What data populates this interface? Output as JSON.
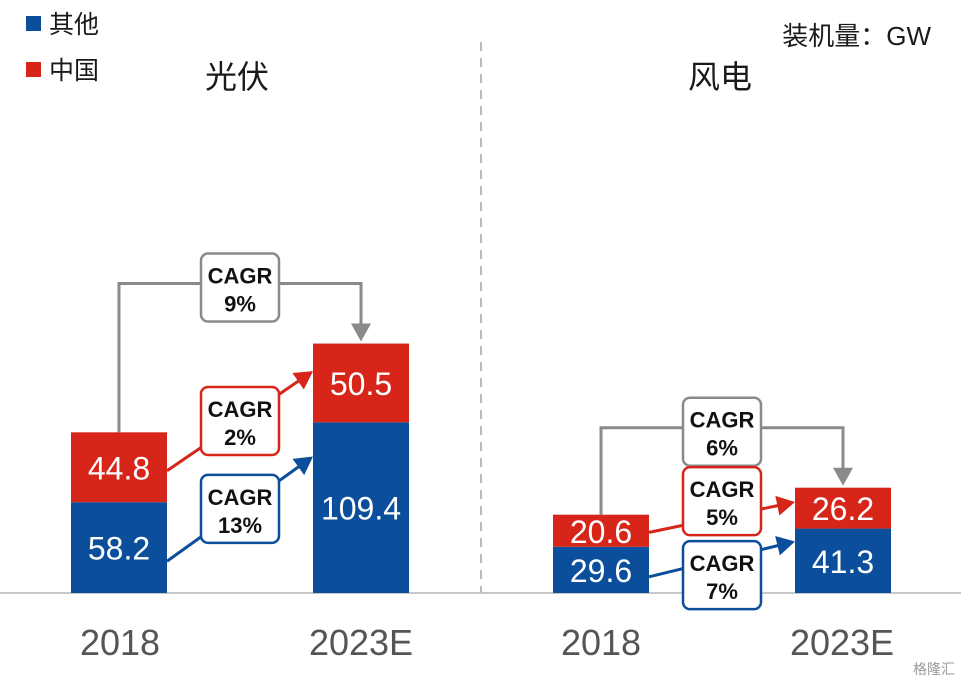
{
  "legend": [
    {
      "label": "其他",
      "color": "#0b4f9c"
    },
    {
      "label": "中国",
      "color": "#d7251a"
    }
  ],
  "unit_label": "装机量：GW",
  "watermark": "格隆汇",
  "colors": {
    "other": "#0b4f9c",
    "china": "#d7251a",
    "total_arrow": "#8a8a8a",
    "divider": "#bdbdbd"
  },
  "chart_data": [
    {
      "type": "bar",
      "stacked": true,
      "title": "光伏",
      "categories": [
        "2018",
        "2023E"
      ],
      "series": [
        {
          "name": "其他",
          "values": [
            58.2,
            109.4
          ]
        },
        {
          "name": "中国",
          "values": [
            44.8,
            50.5
          ]
        }
      ],
      "annotations": [
        {
          "label": "CAGR",
          "value": "9%",
          "applies_to": "total"
        },
        {
          "label": "CAGR",
          "value": "2%",
          "applies_to": "中国"
        },
        {
          "label": "CAGR",
          "value": "13%",
          "applies_to": "其他"
        }
      ]
    },
    {
      "type": "bar",
      "stacked": true,
      "title": "风电",
      "categories": [
        "2018",
        "2023E"
      ],
      "series": [
        {
          "name": "其他",
          "values": [
            29.6,
            41.3
          ]
        },
        {
          "name": "中国",
          "values": [
            20.6,
            26.2
          ]
        }
      ],
      "annotations": [
        {
          "label": "CAGR",
          "value": "6%",
          "applies_to": "total"
        },
        {
          "label": "CAGR",
          "value": "5%",
          "applies_to": "中国"
        },
        {
          "label": "CAGR",
          "value": "7%",
          "applies_to": "其他"
        }
      ]
    }
  ]
}
